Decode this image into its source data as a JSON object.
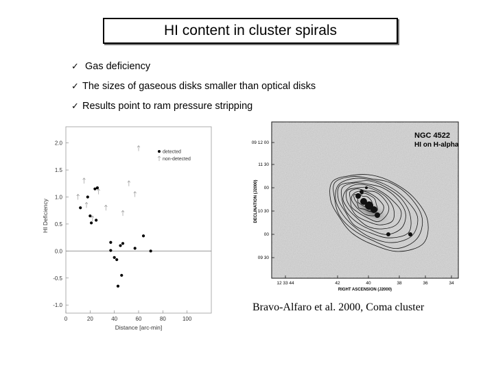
{
  "slide": {
    "title": "HI content in cluster spirals",
    "bullets": [
      "Gas deficiency",
      "The sizes of gaseous disks smaller than optical disks",
      "Results point to ram pressure stripping"
    ],
    "check_glyph": "✓",
    "caption": "Bravo-Alfaro et al. 2000, Coma cluster"
  },
  "chart_data": {
    "type": "scatter",
    "xlabel": "Distance [arc-min]",
    "ylabel": "HI Deficiency",
    "xlim": [
      0,
      120
    ],
    "ylim": [
      -1.15,
      2.3
    ],
    "x_ticks": [
      0,
      20,
      40,
      60,
      80,
      100
    ],
    "y_ticks": [
      2.0,
      1.5,
      1.0,
      0.5,
      0.0,
      -0.5,
      -1.0
    ],
    "zero_line": true,
    "legend_position": "top-right",
    "series": [
      {
        "name": "detected",
        "marker": "filled-circle",
        "x": [
          12,
          18,
          20,
          21,
          24,
          25,
          26,
          37,
          37,
          40,
          42,
          43,
          45,
          46,
          47,
          57,
          64,
          70
        ],
        "y": [
          0.8,
          1.0,
          0.65,
          0.52,
          1.15,
          0.57,
          1.17,
          0.16,
          0.01,
          -0.12,
          -0.16,
          -0.65,
          0.1,
          -0.45,
          0.14,
          0.05,
          0.28,
          0.0
        ]
      },
      {
        "name": "non-detected",
        "marker": "arrow-up",
        "x": [
          10,
          15,
          17,
          22,
          27,
          33,
          47,
          52,
          57,
          60
        ],
        "y": [
          1.0,
          1.3,
          0.85,
          0.6,
          1.1,
          0.8,
          0.7,
          1.25,
          1.05,
          1.9
        ]
      }
    ]
  },
  "radio_map": {
    "object_label": "NGC 4522",
    "overlay_label": "HI on H-alpha",
    "xlabel": "RIGHT ASCENSION (J2000)",
    "ylabel": "DECLINATION (J2000)",
    "x_ticks": [
      "12 33 44",
      "42",
      "40",
      "38",
      "36",
      "34"
    ],
    "y_ticks": [
      "09 12 00",
      "11 30",
      "00",
      "10 30",
      "00",
      "09 30"
    ]
  }
}
